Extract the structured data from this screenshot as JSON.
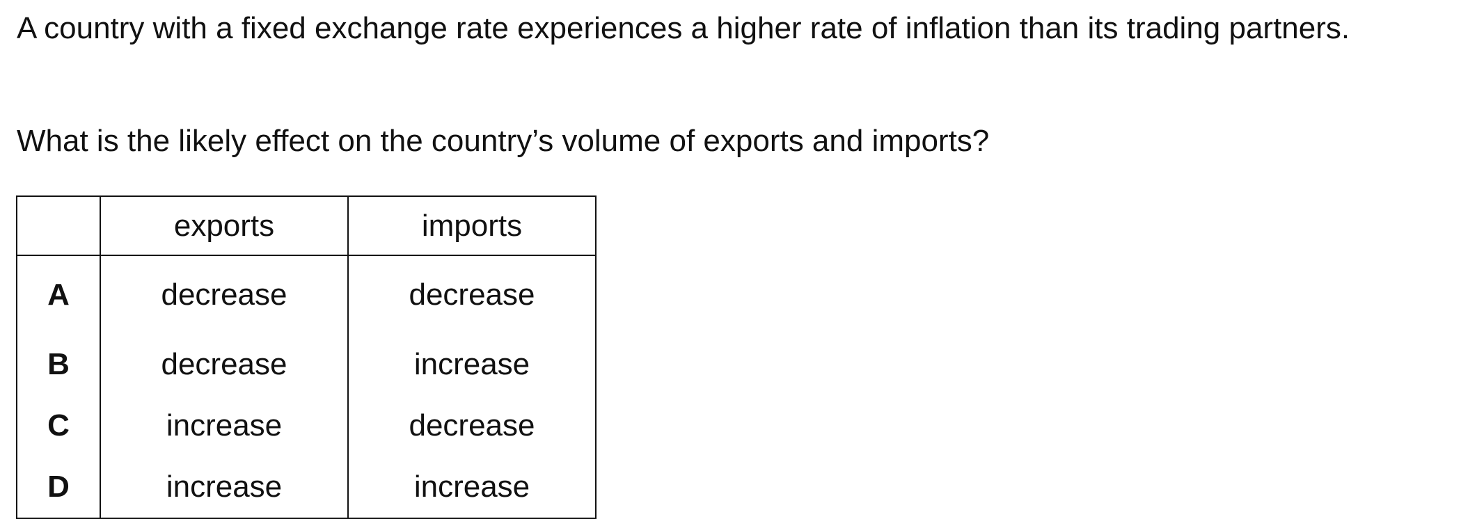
{
  "question": {
    "intro": "A country with a fixed exchange rate experiences a higher rate of inflation than its trading partners.",
    "prompt": "What is the likely effect on the country’s volume of exports and imports?"
  },
  "table": {
    "headers": {
      "key": "",
      "exports": "exports",
      "imports": "imports"
    },
    "rows": [
      {
        "key": "A",
        "exports": "decrease",
        "imports": "decrease"
      },
      {
        "key": "B",
        "exports": "decrease",
        "imports": "increase"
      },
      {
        "key": "C",
        "exports": "increase",
        "imports": "decrease"
      },
      {
        "key": "D",
        "exports": "increase",
        "imports": "increase"
      }
    ]
  }
}
